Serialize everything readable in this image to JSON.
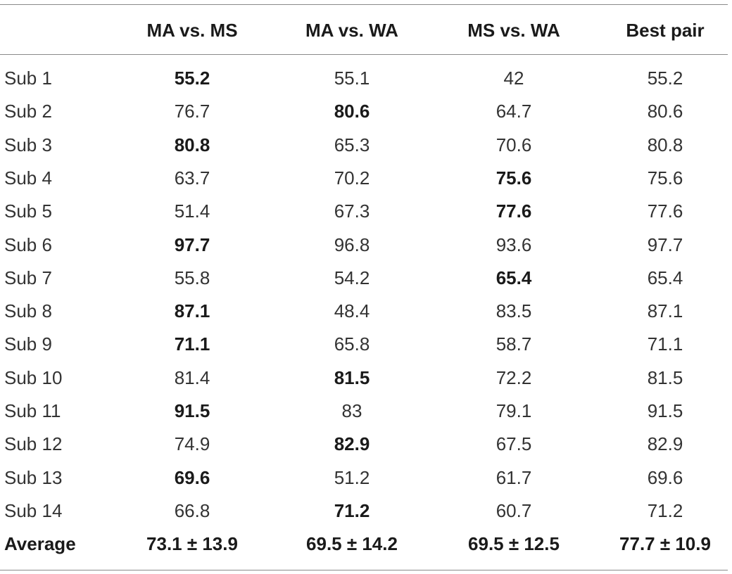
{
  "table": {
    "headers": [
      "",
      "MA vs. MS",
      "MA vs. WA",
      "MS vs. WA",
      "Best pair"
    ],
    "rows": [
      {
        "label": "Sub 1",
        "values": [
          "55.2",
          "55.1",
          "42",
          "55.2"
        ],
        "bold": [
          true,
          false,
          false,
          false
        ]
      },
      {
        "label": "Sub 2",
        "values": [
          "76.7",
          "80.6",
          "64.7",
          "80.6"
        ],
        "bold": [
          false,
          true,
          false,
          false
        ]
      },
      {
        "label": "Sub 3",
        "values": [
          "80.8",
          "65.3",
          "70.6",
          "80.8"
        ],
        "bold": [
          true,
          false,
          false,
          false
        ]
      },
      {
        "label": "Sub 4",
        "values": [
          "63.7",
          "70.2",
          "75.6",
          "75.6"
        ],
        "bold": [
          false,
          false,
          true,
          false
        ]
      },
      {
        "label": "Sub 5",
        "values": [
          "51.4",
          "67.3",
          "77.6",
          "77.6"
        ],
        "bold": [
          false,
          false,
          true,
          false
        ]
      },
      {
        "label": "Sub 6",
        "values": [
          "97.7",
          "96.8",
          "93.6",
          "97.7"
        ],
        "bold": [
          true,
          false,
          false,
          false
        ]
      },
      {
        "label": "Sub 7",
        "values": [
          "55.8",
          "54.2",
          "65.4",
          "65.4"
        ],
        "bold": [
          false,
          false,
          true,
          false
        ]
      },
      {
        "label": "Sub 8",
        "values": [
          "87.1",
          "48.4",
          "83.5",
          "87.1"
        ],
        "bold": [
          true,
          false,
          false,
          false
        ]
      },
      {
        "label": "Sub 9",
        "values": [
          "71.1",
          "65.8",
          "58.7",
          "71.1"
        ],
        "bold": [
          true,
          false,
          false,
          false
        ]
      },
      {
        "label": "Sub 10",
        "values": [
          "81.4",
          "81.5",
          "72.2",
          "81.5"
        ],
        "bold": [
          false,
          true,
          false,
          false
        ]
      },
      {
        "label": "Sub 11",
        "values": [
          "91.5",
          "83",
          "79.1",
          "91.5"
        ],
        "bold": [
          true,
          false,
          false,
          false
        ]
      },
      {
        "label": "Sub 12",
        "values": [
          "74.9",
          "82.9",
          "67.5",
          "82.9"
        ],
        "bold": [
          false,
          true,
          false,
          false
        ]
      },
      {
        "label": "Sub 13",
        "values": [
          "69.6",
          "51.2",
          "61.7",
          "69.6"
        ],
        "bold": [
          true,
          false,
          false,
          false
        ]
      },
      {
        "label": "Sub 14",
        "values": [
          "66.8",
          "71.2",
          "60.7",
          "71.2"
        ],
        "bold": [
          false,
          true,
          false,
          false
        ]
      }
    ],
    "average": {
      "label": "Average",
      "values": [
        "73.1 ± 13.9",
        "69.5 ± 14.2",
        "69.5 ± 12.5",
        "77.7 ± 10.9"
      ]
    }
  }
}
